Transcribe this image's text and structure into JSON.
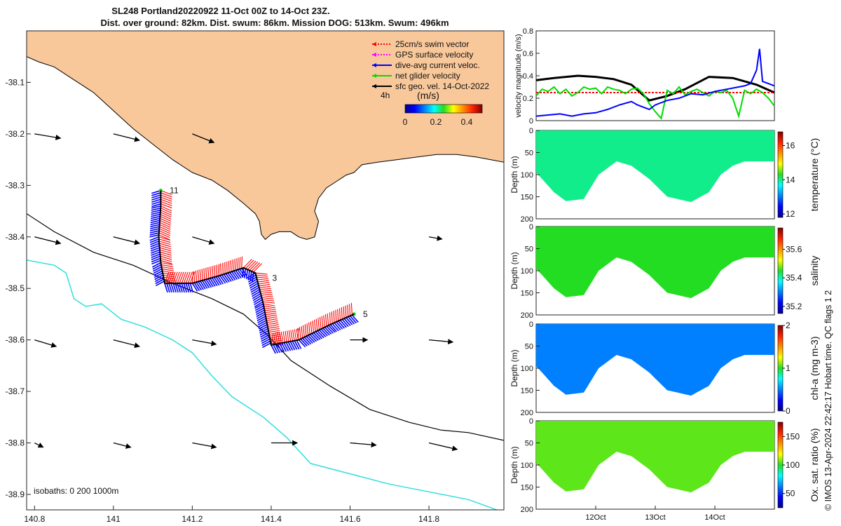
{
  "title": {
    "line1": "SL248 Portland20220922 11-Oct 00Z to 14-Oct 23Z.",
    "line2": "Dist. over ground: 82km. Dist. swum: 86km. Mission DOG: 513km. Swum: 496km"
  },
  "colors": {
    "land": "#f9c89a",
    "swim": "#ff0000",
    "gps": "#ff00ff",
    "dive": "#0000ff",
    "net": "#00dd00",
    "sfc": "#000000",
    "isobath1000": "#33dddd"
  },
  "chart_data": [
    {
      "id": "map",
      "type": "map",
      "xlim": [
        140.78,
        141.99
      ],
      "ylim": [
        -38.93,
        -38.0
      ],
      "x_ticks": [
        "140.8",
        "141",
        "141.2",
        "141.4",
        "141.6",
        "141.8"
      ],
      "x_tick_values": [
        140.8,
        141.0,
        141.2,
        141.4,
        141.6,
        141.8
      ],
      "y_ticks": [
        "-38.1",
        "-38.2",
        "-38.3",
        "-38.4",
        "-38.5",
        "-38.6",
        "-38.7",
        "-38.8",
        "-38.9"
      ],
      "y_tick_values": [
        -38.1,
        -38.2,
        -38.3,
        -38.4,
        -38.5,
        -38.6,
        -38.7,
        -38.8,
        -38.9
      ],
      "legend": [
        {
          "name": "25cm/s swim vector",
          "color": "#ff0000",
          "dashed": true
        },
        {
          "name": "GPS surface velocity",
          "color": "#ff00ff",
          "dashed": true
        },
        {
          "name": "dive-avg current veloc.",
          "color": "#0000ff",
          "dashed": false
        },
        {
          "name": "net glider velocity",
          "color": "#00dd00",
          "dashed": false
        },
        {
          "name": "sfc geo. vel. 14-Oct-2022",
          "color": "#000000",
          "dashed": false
        }
      ],
      "legend_time": "4h",
      "colorbar": {
        "label": "(m/s)",
        "ticks": [
          "0",
          "0.2",
          "0.4"
        ],
        "tick_values": [
          0,
          0.2,
          0.4
        ],
        "range": [
          0,
          0.5
        ]
      },
      "isobaths_label": "isobaths: 0   200  1000m",
      "track": [
        {
          "lon": 141.12,
          "lat": -38.31
        },
        {
          "lon": 141.12,
          "lat": -38.34
        },
        {
          "lon": 141.115,
          "lat": -38.4
        },
        {
          "lon": 141.12,
          "lat": -38.45
        },
        {
          "lon": 141.13,
          "lat": -38.49
        },
        {
          "lon": 141.2,
          "lat": -38.49
        },
        {
          "lon": 141.27,
          "lat": -38.475
        },
        {
          "lon": 141.33,
          "lat": -38.46
        },
        {
          "lon": 141.36,
          "lat": -38.47
        },
        {
          "lon": 141.38,
          "lat": -38.53
        },
        {
          "lon": 141.4,
          "lat": -38.61
        },
        {
          "lon": 141.47,
          "lat": -38.6
        },
        {
          "lon": 141.55,
          "lat": -38.57
        },
        {
          "lon": 141.61,
          "lat": -38.55
        }
      ],
      "track_labels": [
        {
          "text": "11",
          "lon": 141.125,
          "lat": -38.31
        },
        {
          "text": "3",
          "lon": 141.385,
          "lat": -38.48
        },
        {
          "text": "5",
          "lon": 141.615,
          "lat": -38.55
        }
      ],
      "sfc_vectors": [
        {
          "lon": 140.8,
          "lat": -38.2,
          "u": 0.06,
          "v": -0.01
        },
        {
          "lon": 141.0,
          "lat": -38.2,
          "u": 0.06,
          "v": -0.015
        },
        {
          "lon": 141.2,
          "lat": -38.2,
          "u": 0.05,
          "v": -0.02
        },
        {
          "lon": 140.8,
          "lat": -38.4,
          "u": 0.06,
          "v": -0.015
        },
        {
          "lon": 141.0,
          "lat": -38.4,
          "u": 0.06,
          "v": -0.015
        },
        {
          "lon": 141.2,
          "lat": -38.4,
          "u": 0.05,
          "v": -0.015
        },
        {
          "lon": 141.8,
          "lat": -38.4,
          "u": 0.03,
          "v": -0.005
        },
        {
          "lon": 140.8,
          "lat": -38.6,
          "u": 0.05,
          "v": -0.015
        },
        {
          "lon": 141.0,
          "lat": -38.6,
          "u": 0.06,
          "v": -0.015
        },
        {
          "lon": 141.2,
          "lat": -38.6,
          "u": 0.055,
          "v": -0.01
        },
        {
          "lon": 141.6,
          "lat": -38.6,
          "u": 0.04,
          "v": 0.0
        },
        {
          "lon": 141.8,
          "lat": -38.6,
          "u": 0.055,
          "v": -0.005
        },
        {
          "lon": 140.8,
          "lat": -38.8,
          "u": 0.02,
          "v": -0.01
        },
        {
          "lon": 141.0,
          "lat": -38.8,
          "u": 0.04,
          "v": -0.01
        },
        {
          "lon": 141.2,
          "lat": -38.8,
          "u": 0.055,
          "v": -0.01
        },
        {
          "lon": 141.4,
          "lat": -38.8,
          "u": 0.06,
          "v": 0.0
        },
        {
          "lon": 141.6,
          "lat": -38.8,
          "u": 0.06,
          "v": -0.005
        },
        {
          "lon": 141.8,
          "lat": -38.8,
          "u": 0.065,
          "v": -0.015
        }
      ],
      "coast": [
        [
          140.78,
          -38.05
        ],
        [
          140.81,
          -38.06
        ],
        [
          140.85,
          -38.07
        ],
        [
          140.9,
          -38.095
        ],
        [
          140.95,
          -38.12
        ],
        [
          141.0,
          -38.155
        ],
        [
          141.05,
          -38.19
        ],
        [
          141.1,
          -38.22
        ],
        [
          141.15,
          -38.25
        ],
        [
          141.2,
          -38.275
        ],
        [
          141.25,
          -38.29
        ],
        [
          141.29,
          -38.31
        ],
        [
          141.33,
          -38.335
        ],
        [
          141.36,
          -38.355
        ],
        [
          141.37,
          -38.37
        ],
        [
          141.375,
          -38.395
        ],
        [
          141.385,
          -38.405
        ],
        [
          141.4,
          -38.395
        ],
        [
          141.42,
          -38.39
        ],
        [
          141.45,
          -38.39
        ],
        [
          141.47,
          -38.4
        ],
        [
          141.49,
          -38.405
        ],
        [
          141.51,
          -38.4
        ],
        [
          141.52,
          -38.37
        ],
        [
          141.51,
          -38.35
        ],
        [
          141.52,
          -38.325
        ],
        [
          141.54,
          -38.305
        ],
        [
          141.57,
          -38.29
        ],
        [
          141.59,
          -38.28
        ],
        [
          141.61,
          -38.275
        ],
        [
          141.63,
          -38.26
        ],
        [
          141.67,
          -38.255
        ],
        [
          141.72,
          -38.25
        ],
        [
          141.77,
          -38.245
        ],
        [
          141.82,
          -38.24
        ],
        [
          141.87,
          -38.24
        ],
        [
          141.92,
          -38.245
        ],
        [
          141.99,
          -38.255
        ]
      ],
      "isobath200": [
        [
          140.78,
          -38.355
        ],
        [
          140.85,
          -38.39
        ],
        [
          140.95,
          -38.43
        ],
        [
          141.05,
          -38.455
        ],
        [
          141.15,
          -38.49
        ],
        [
          141.25,
          -38.52
        ],
        [
          141.33,
          -38.55
        ],
        [
          141.39,
          -38.59
        ],
        [
          141.45,
          -38.64
        ],
        [
          141.55,
          -38.69
        ],
        [
          141.65,
          -38.735
        ],
        [
          141.75,
          -38.76
        ],
        [
          141.83,
          -38.775
        ],
        [
          141.9,
          -38.78
        ],
        [
          141.99,
          -38.795
        ]
      ],
      "isobath1000": [
        [
          140.78,
          -38.445
        ],
        [
          140.85,
          -38.455
        ],
        [
          140.88,
          -38.47
        ],
        [
          140.9,
          -38.52
        ],
        [
          140.93,
          -38.535
        ],
        [
          140.97,
          -38.53
        ],
        [
          141.02,
          -38.56
        ],
        [
          141.08,
          -38.575
        ],
        [
          141.15,
          -38.6
        ],
        [
          141.2,
          -38.625
        ],
        [
          141.25,
          -38.67
        ],
        [
          141.3,
          -38.71
        ],
        [
          141.38,
          -38.75
        ],
        [
          141.44,
          -38.79
        ],
        [
          141.5,
          -38.84
        ],
        [
          141.6,
          -38.86
        ],
        [
          141.7,
          -38.88
        ],
        [
          141.8,
          -38.895
        ],
        [
          141.9,
          -38.91
        ],
        [
          141.99,
          -38.935
        ]
      ]
    },
    {
      "id": "velocity",
      "type": "line",
      "ylabel": "velocity magnitude (m/s)",
      "ylim": [
        0,
        0.8
      ],
      "y_ticks": [
        "0",
        "0.2",
        "0.4",
        "0.6",
        "0.8"
      ],
      "y_tick_values": [
        0,
        0.2,
        0.4,
        0.6,
        0.8
      ],
      "xlim": [
        11.0,
        15.0
      ],
      "series": [
        {
          "color": "#000000",
          "width": 3,
          "x": [
            11.0,
            11.3,
            11.7,
            12.0,
            12.3,
            12.6,
            12.9,
            13.2,
            13.5,
            13.9,
            14.3,
            14.7,
            15.0
          ],
          "y": [
            0.36,
            0.38,
            0.4,
            0.39,
            0.37,
            0.32,
            0.18,
            0.22,
            0.28,
            0.39,
            0.38,
            0.32,
            0.25
          ]
        },
        {
          "color": "#ff0000",
          "width": 2,
          "x": [
            11.0,
            15.0
          ],
          "y": [
            0.25,
            0.25
          ]
        },
        {
          "color": "#00dd00",
          "width": 2,
          "x": [
            11.0,
            11.1,
            11.2,
            11.3,
            11.4,
            11.5,
            11.6,
            11.7,
            11.8,
            11.9,
            12.0,
            12.1,
            12.2,
            12.3,
            12.4,
            12.5,
            12.6,
            12.7,
            12.8,
            12.9,
            13.0,
            13.1,
            13.2,
            13.3,
            13.4,
            13.5,
            13.6,
            13.7,
            13.8,
            13.9,
            14.0,
            14.1,
            14.2,
            14.3,
            14.4,
            14.5,
            14.6,
            14.7,
            14.8,
            14.9,
            15.0
          ],
          "y": [
            0.22,
            0.28,
            0.26,
            0.3,
            0.24,
            0.28,
            0.22,
            0.25,
            0.3,
            0.28,
            0.29,
            0.24,
            0.3,
            0.28,
            0.27,
            0.24,
            0.28,
            0.29,
            0.24,
            0.15,
            0.08,
            0.02,
            0.27,
            0.24,
            0.3,
            0.23,
            0.26,
            0.28,
            0.25,
            0.22,
            0.26,
            0.25,
            0.27,
            0.2,
            0.04,
            0.27,
            0.24,
            0.28,
            0.25,
            0.2,
            0.13
          ]
        },
        {
          "color": "#0000ff",
          "width": 2,
          "x": [
            11.0,
            11.2,
            11.4,
            11.6,
            11.8,
            12.0,
            12.2,
            12.4,
            12.6,
            12.7,
            12.8,
            12.9,
            13.0,
            13.2,
            13.4,
            13.6,
            13.8,
            14.0,
            14.2,
            14.4,
            14.5,
            14.6,
            14.7,
            14.75,
            14.8,
            14.9,
            15.0
          ],
          "y": [
            0.04,
            0.05,
            0.06,
            0.04,
            0.06,
            0.07,
            0.1,
            0.14,
            0.17,
            0.14,
            0.12,
            0.1,
            0.14,
            0.18,
            0.2,
            0.24,
            0.23,
            0.26,
            0.28,
            0.3,
            0.31,
            0.33,
            0.45,
            0.64,
            0.35,
            0.33,
            0.31
          ]
        }
      ]
    },
    {
      "id": "temperature",
      "type": "heatmap",
      "ylabel": "Depth (m)",
      "colorbar_label": "temperature (°C)",
      "ylim": [
        0,
        200
      ],
      "y_ticks": [
        "0",
        "50",
        "100",
        "150",
        "200"
      ],
      "y_tick_values": [
        0,
        50,
        100,
        150,
        200
      ],
      "cb_ticks": [
        "12",
        "14",
        "16"
      ],
      "cb_tick_values": [
        12,
        14,
        16
      ],
      "cb_range": [
        11.8,
        16.8
      ],
      "fill_value": 14.0,
      "depth_profile": [
        [
          11.0,
          95
        ],
        [
          11.3,
          140
        ],
        [
          11.5,
          160
        ],
        [
          11.8,
          155
        ],
        [
          12.05,
          100
        ],
        [
          12.35,
          70
        ],
        [
          12.6,
          80
        ],
        [
          12.9,
          110
        ],
        [
          13.2,
          150
        ],
        [
          13.6,
          162
        ],
        [
          13.9,
          140
        ],
        [
          14.1,
          100
        ],
        [
          14.3,
          80
        ],
        [
          14.5,
          70
        ],
        [
          15.0,
          70
        ]
      ]
    },
    {
      "id": "salinity",
      "type": "heatmap",
      "ylabel": "Depth (m)",
      "colorbar_label": "salinity",
      "ylim": [
        0,
        200
      ],
      "y_ticks": [
        "0",
        "50",
        "100",
        "150",
        "200"
      ],
      "y_tick_values": [
        0,
        50,
        100,
        150,
        200
      ],
      "cb_ticks": [
        "35.2",
        "35.4",
        "35.6"
      ],
      "cb_tick_values": [
        35.2,
        35.4,
        35.6
      ],
      "cb_range": [
        35.15,
        35.75
      ],
      "fill_value": 35.45,
      "depth_profile": [
        [
          11.0,
          95
        ],
        [
          11.3,
          140
        ],
        [
          11.5,
          160
        ],
        [
          11.8,
          155
        ],
        [
          12.05,
          100
        ],
        [
          12.35,
          70
        ],
        [
          12.6,
          80
        ],
        [
          12.9,
          110
        ],
        [
          13.2,
          150
        ],
        [
          13.6,
          162
        ],
        [
          13.9,
          140
        ],
        [
          14.1,
          100
        ],
        [
          14.3,
          80
        ],
        [
          14.5,
          70
        ],
        [
          15.0,
          70
        ]
      ]
    },
    {
      "id": "chla",
      "type": "heatmap",
      "ylabel": "Depth (m)",
      "colorbar_label": "chl-a (mg m-3)",
      "ylim": [
        0,
        200
      ],
      "y_ticks": [
        "0",
        "50",
        "100",
        "150",
        "200"
      ],
      "y_tick_values": [
        0,
        50,
        100,
        150,
        200
      ],
      "cb_ticks": [
        "0",
        "1",
        "2"
      ],
      "cb_tick_values": [
        0,
        1,
        2
      ],
      "cb_range": [
        0,
        2
      ],
      "fill_value": 0.5,
      "depth_profile": [
        [
          11.0,
          95
        ],
        [
          11.3,
          140
        ],
        [
          11.5,
          160
        ],
        [
          11.8,
          155
        ],
        [
          12.05,
          100
        ],
        [
          12.35,
          70
        ],
        [
          12.6,
          80
        ],
        [
          12.9,
          110
        ],
        [
          13.2,
          150
        ],
        [
          13.6,
          162
        ],
        [
          13.9,
          140
        ],
        [
          14.1,
          100
        ],
        [
          14.3,
          80
        ],
        [
          14.5,
          70
        ],
        [
          15.0,
          70
        ]
      ]
    },
    {
      "id": "oxygen",
      "type": "heatmap",
      "ylabel": "Depth (m)",
      "colorbar_label": "Ox. sat. ratio (%)",
      "ylim": [
        0,
        200
      ],
      "y_ticks": [
        "0",
        "50",
        "100",
        "150",
        "200"
      ],
      "y_tick_values": [
        0,
        50,
        100,
        150,
        200
      ],
      "cb_ticks": [
        "50",
        "100",
        "150"
      ],
      "cb_tick_values": [
        50,
        100,
        150
      ],
      "cb_range": [
        25,
        175
      ],
      "fill_value": 105,
      "depth_profile": [
        [
          11.0,
          95
        ],
        [
          11.3,
          140
        ],
        [
          11.5,
          160
        ],
        [
          11.8,
          155
        ],
        [
          12.05,
          100
        ],
        [
          12.35,
          70
        ],
        [
          12.6,
          80
        ],
        [
          12.9,
          110
        ],
        [
          13.2,
          150
        ],
        [
          13.6,
          162
        ],
        [
          13.9,
          140
        ],
        [
          14.1,
          100
        ],
        [
          14.3,
          80
        ],
        [
          14.5,
          70
        ],
        [
          15.0,
          70
        ]
      ],
      "x_ticks": [
        "12Oct",
        "13Oct",
        "14Oct"
      ],
      "x_tick_values": [
        12,
        13,
        14
      ]
    }
  ],
  "footer_note": "© IMOS 13-Apr-2024 22:42:17 Hobart time. QC flags 1  2"
}
